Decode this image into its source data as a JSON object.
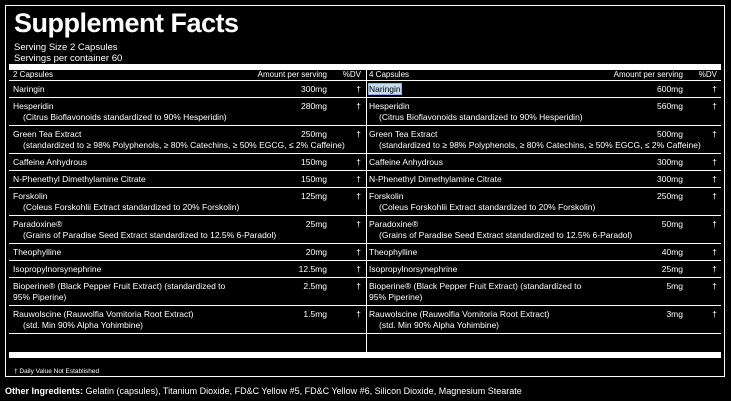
{
  "title": "Supplement Facts",
  "serving_size": "Serving Size 2 Capsules",
  "servings_per_container": "Servings per container 60",
  "left": {
    "header": {
      "name": "2 Capsules",
      "amount": "Amount per serving",
      "dv": "%DV"
    },
    "rows": [
      {
        "name": "Naringin",
        "amount": "300mg",
        "dv": "†"
      },
      {
        "name": "Hesperidin",
        "amount": "280mg",
        "dv": "†",
        "note": "(Citrus Bioflavonoids standardized to 90% Hesperidin)"
      },
      {
        "name": "Green Tea Extract",
        "amount": "250mg",
        "dv": "†",
        "note": "(standardized to ≥ 98% Polyphenols, ≥ 80% Catechins, ≥ 50% EGCG, ≤ 2% Caffeine)"
      },
      {
        "name": "Caffeine Anhydrous",
        "amount": "150mg",
        "dv": "†"
      },
      {
        "name": "N-Phenethyl Dimethylamine Citrate",
        "amount": "150mg",
        "dv": "†"
      },
      {
        "name": "Forskolin",
        "amount": "125mg",
        "dv": "†",
        "note": "(Coleus Forskohlii Extract standardized to 20% Forskolin)"
      },
      {
        "name": "Paradoxine®",
        "amount": "25mg",
        "dv": "†",
        "note": "(Grains of Paradise Seed Extract standardized to 12.5% 6-Paradol)"
      },
      {
        "name": "Theophylline",
        "amount": "20mg",
        "dv": "†"
      },
      {
        "name": "Isopropylnorsynephrine",
        "amount": "12.5mg",
        "dv": "†"
      },
      {
        "name": "Bioperine® (Black Pepper Fruit Extract) (standardized to 95% Piperine)",
        "amount": "2.5mg",
        "dv": "†"
      },
      {
        "name": "Rauwolscine (Rauwolfia Vomitoria Root Extract)",
        "amount": "1.5mg",
        "dv": "†",
        "note": "(std. Min 90% Alpha Yohimbine)"
      }
    ]
  },
  "right": {
    "header": {
      "name": "4 Capsules",
      "amount": "Amount per serving",
      "dv": "%DV"
    },
    "rows": [
      {
        "name": "Naringin",
        "amount": "600mg",
        "dv": "†"
      },
      {
        "name": "Hesperidin",
        "amount": "560mg",
        "dv": "†",
        "note": "(Citrus Bioflavonoids standardized to 90% Hesperidin)"
      },
      {
        "name": "Green Tea Extract",
        "amount": "500mg",
        "dv": "†",
        "note": "(standardized to ≥ 98% Polyphenols, ≥ 80% Catechins, ≥ 50% EGCG, ≤ 2% Caffeine)"
      },
      {
        "name": "Caffeine Anhydrous",
        "amount": "300mg",
        "dv": "†"
      },
      {
        "name": "N-Phenethyl Dimethylamine Citrate",
        "amount": "300mg",
        "dv": "†"
      },
      {
        "name": "Forskolin",
        "amount": "250mg",
        "dv": "†",
        "note": "(Coleus Forskohlii Extract standardized to 20% Forskolin)"
      },
      {
        "name": "Paradoxine®",
        "amount": "50mg",
        "dv": "†",
        "note": "(Grains of Paradise Seed Extract standardized to 12.5% 6-Paradol)"
      },
      {
        "name": "Theophylline",
        "amount": "40mg",
        "dv": "†"
      },
      {
        "name": "Isopropylnorsynephrine",
        "amount": "25mg",
        "dv": "†"
      },
      {
        "name": "Bioperine® (Black Pepper Fruit Extract) (standardized to 95% Piperine)",
        "amount": "5mg",
        "dv": "†"
      },
      {
        "name": "Rauwolscine (Rauwolfia Vomitoria Root Extract)",
        "amount": "3mg",
        "dv": "†",
        "note": "(std. Min 90% Alpha Yohimbine)"
      }
    ]
  },
  "footnote": "† Daily Value Not Established",
  "other_ingredients_label": "Other Ingredients:",
  "other_ingredients": "Gelatin (capsules), Titanium Dioxide, FD&C Yellow #5, FD&C Yellow #6, Silicon Dioxide, Magnesium Stearate"
}
